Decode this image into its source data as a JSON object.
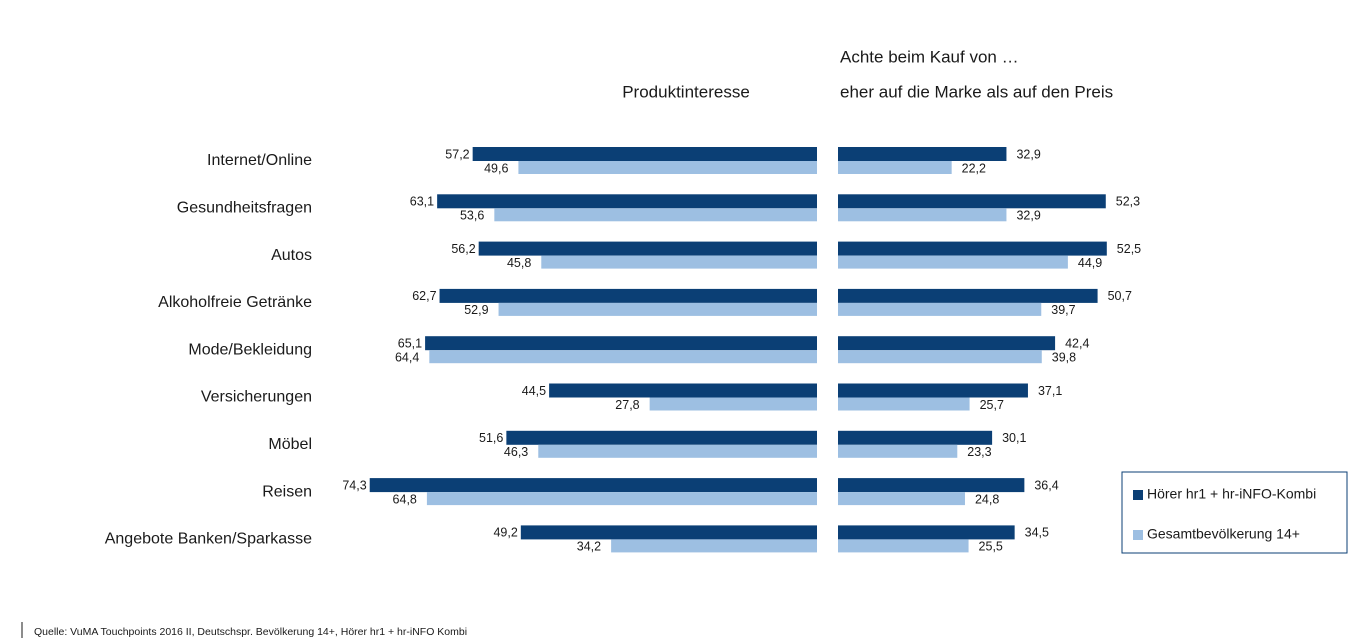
{
  "chart_data": [
    {
      "type": "bar",
      "title": "Produktinteresse",
      "categories": [
        "Internet/Online",
        "Gesundheitsfragen",
        "Autos",
        "Alkoholfreie Getränke",
        "Mode/Bekleidung",
        "Versicherungen",
        "Möbel",
        "Reisen",
        "Angebote Banken/Sparkasse"
      ],
      "series": [
        {
          "name": "Hörer hr1 + hr-iNFO-Kombi",
          "color": "#0b3f75",
          "values": [
            57.2,
            63.1,
            56.2,
            62.7,
            65.1,
            44.5,
            51.6,
            74.3,
            49.2
          ],
          "value_labels": [
            "57,2",
            "63,1",
            "56,2",
            "62,7",
            "65,1",
            "44,5",
            "51,6",
            "74,3",
            "49,2"
          ]
        },
        {
          "name": "Gesamtbevölkerung 14+",
          "color": "#9dbfe2",
          "values": [
            49.6,
            53.6,
            45.8,
            52.9,
            64.4,
            27.8,
            46.3,
            64.8,
            34.2
          ],
          "value_labels": [
            "49,6",
            "53,6",
            "45,8",
            "52,9",
            "64,4",
            "27,8",
            "46,3",
            "64,8",
            "34,2"
          ]
        }
      ],
      "xlim": [
        0,
        80
      ],
      "legend": "lower right",
      "source": "Quelle: VuMA Touchpoints 2016 II,  Deutschspr. Bevölkerung 14+, Hörer hr1 + hr-iNFO Kombi"
    },
    {
      "type": "bar",
      "title": "Achte beim Kauf von …",
      "subtitle": "eher auf die Marke als auf den Preis",
      "series": [
        {
          "color": "#0b3f75",
          "values": [
            32.9,
            52.3,
            52.5,
            50.7,
            42.4,
            37.1,
            30.1,
            36.4,
            34.5
          ],
          "value_labels": [
            "32,9",
            "52,3",
            "52,5",
            "50,7",
            "42,4",
            "37,1",
            "30,1",
            "36,4",
            "34,5"
          ]
        },
        {
          "color": "#9dbfe2",
          "values": [
            22.2,
            32.9,
            44.9,
            39.7,
            39.8,
            25.7,
            23.3,
            24.8,
            25.5
          ],
          "value_labels": [
            "22,2",
            "32,9",
            "44,9",
            "39,7",
            "39,8",
            "25,7",
            "23,3",
            "24,8",
            "25,5"
          ]
        }
      ],
      "xlim": [
        0,
        60
      ]
    }
  ]
}
